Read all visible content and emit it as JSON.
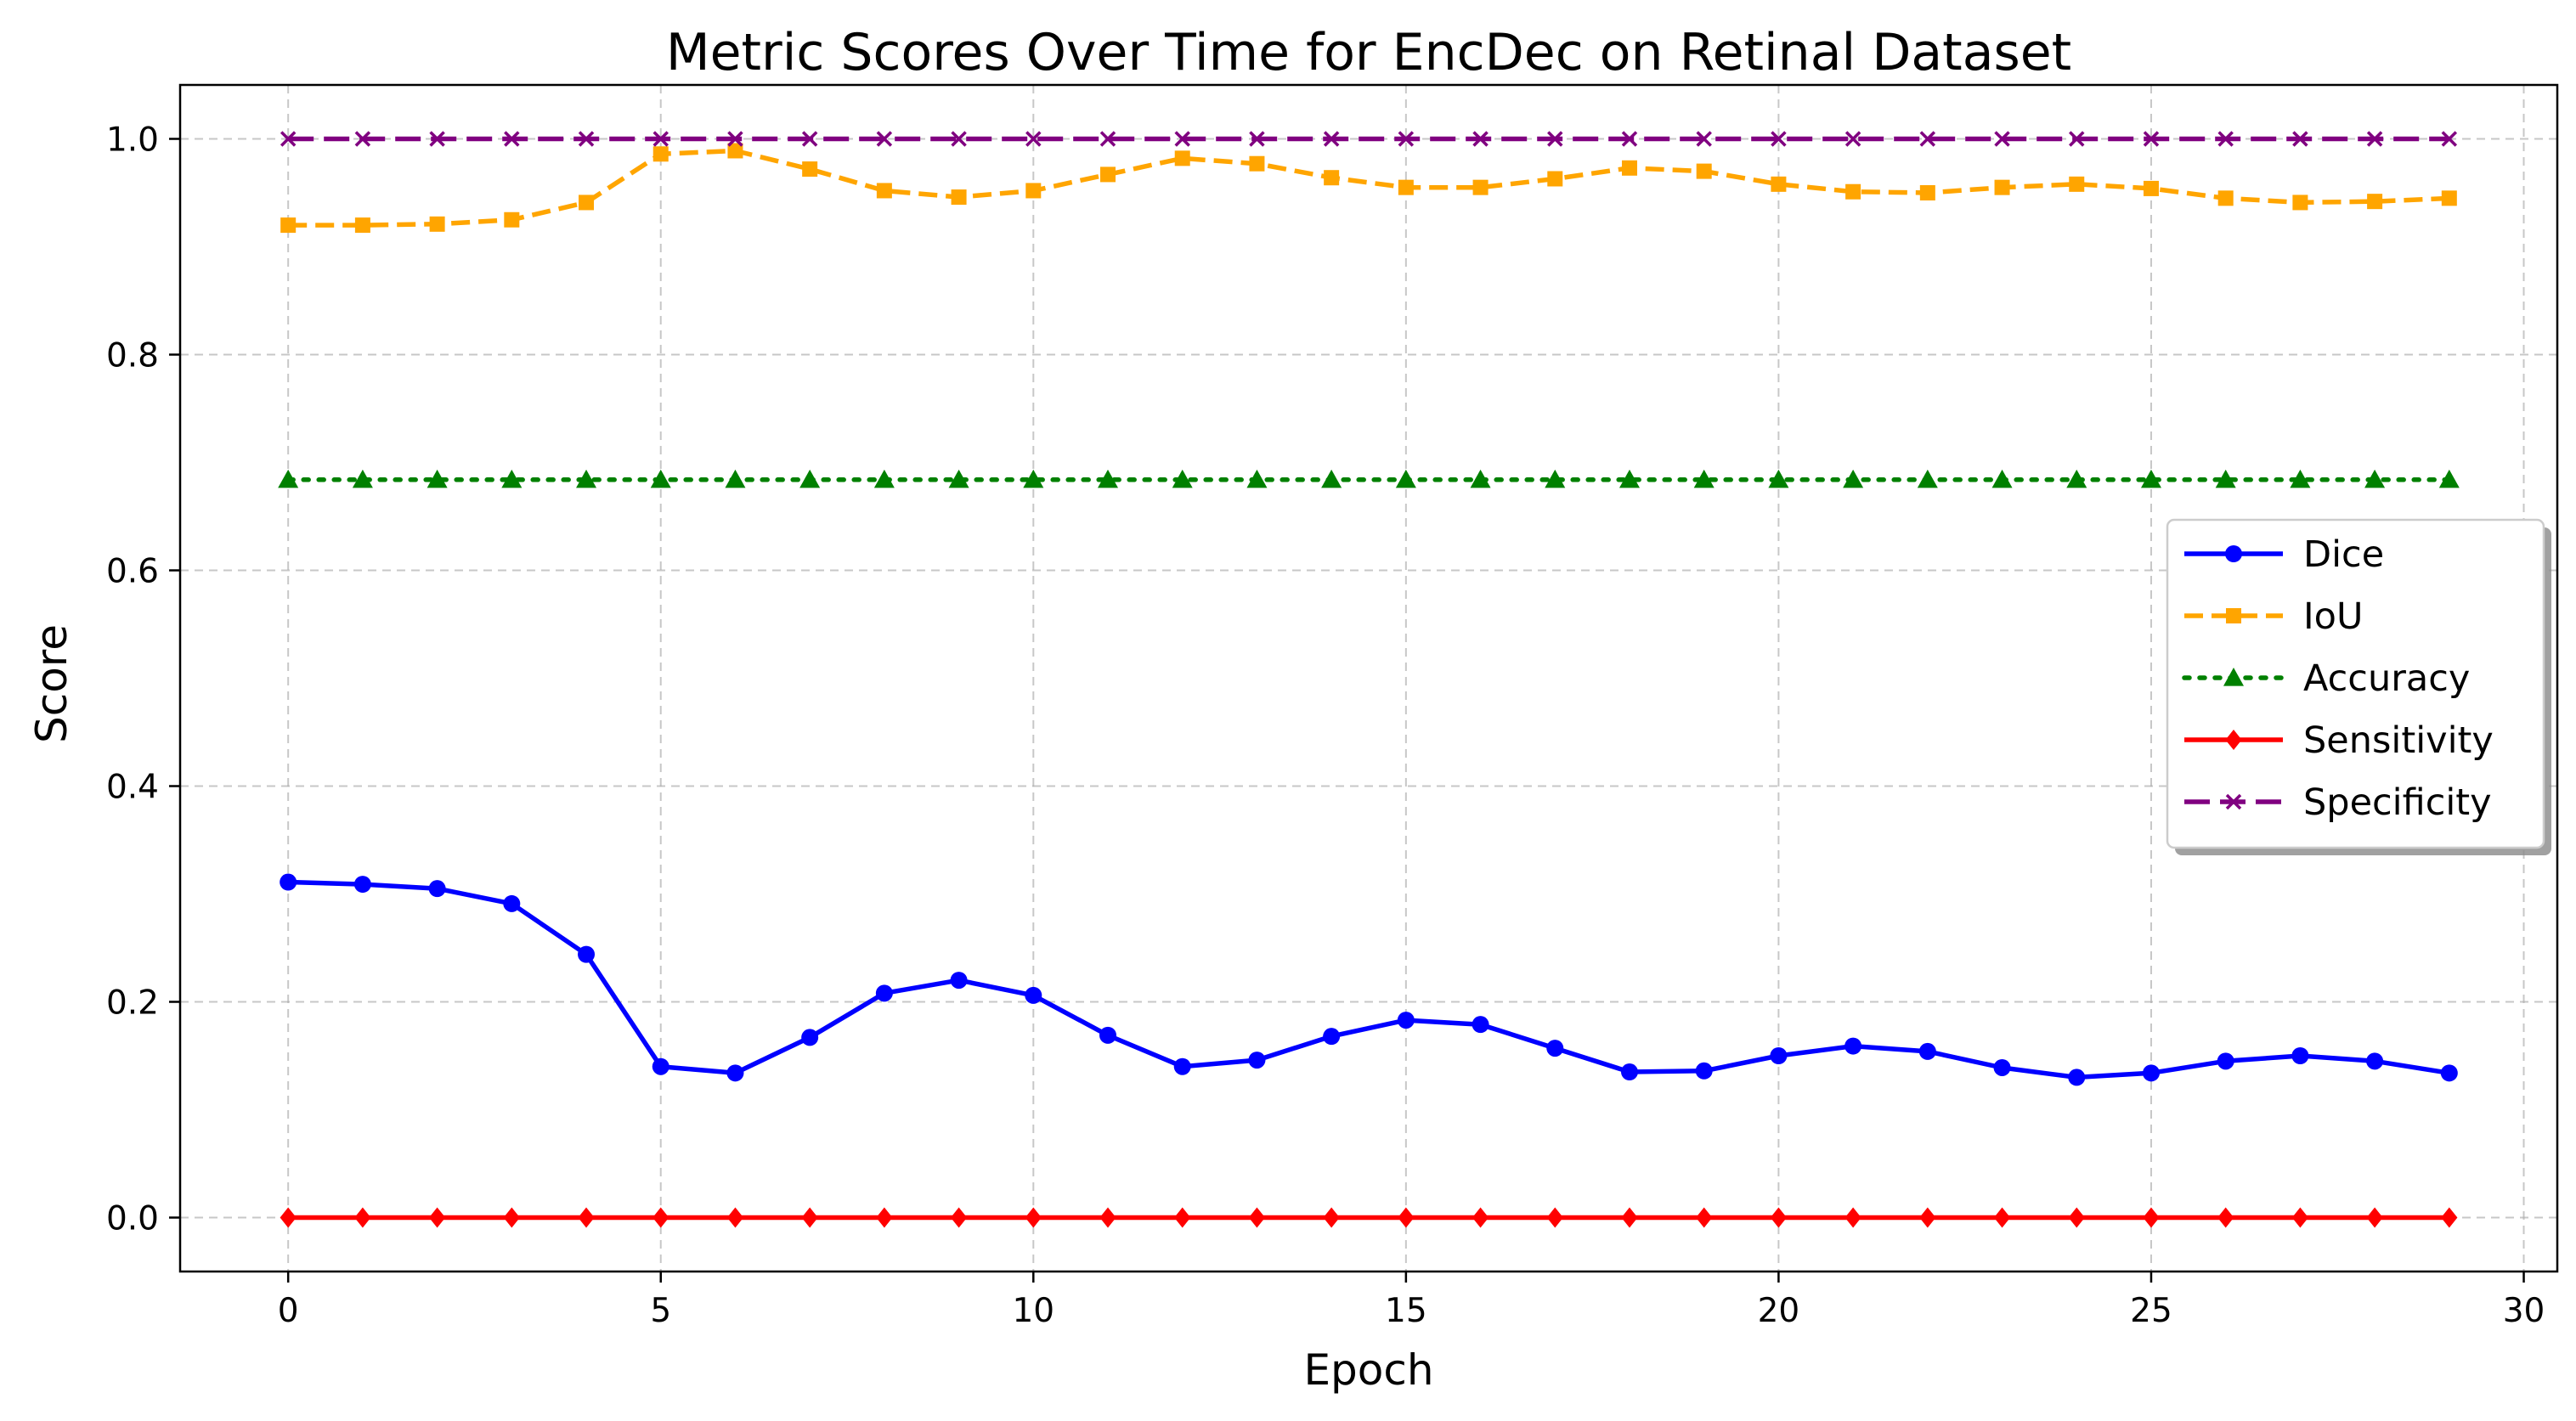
{
  "chart_data": {
    "type": "line",
    "title": "Metric Scores Over Time for EncDec on Retinal Dataset",
    "xlabel": "Epoch",
    "ylabel": "Score",
    "xlim": [
      -1.45,
      30.45
    ],
    "ylim": [
      -0.05,
      1.05
    ],
    "xticks": [
      0,
      5,
      10,
      15,
      20,
      25,
      30
    ],
    "xtick_labels": [
      "0",
      "5",
      "10",
      "15",
      "20",
      "25",
      "30"
    ],
    "yticks": [
      0.0,
      0.2,
      0.4,
      0.6,
      0.8,
      1.0
    ],
    "ytick_labels": [
      "0.0",
      "0.2",
      "0.4",
      "0.6",
      "0.8",
      "1.0"
    ],
    "grid": true,
    "legend_position": "center-right",
    "x": [
      0,
      1,
      2,
      3,
      4,
      5,
      6,
      7,
      8,
      9,
      10,
      11,
      12,
      13,
      14,
      15,
      16,
      17,
      18,
      19,
      20,
      21,
      22,
      23,
      24,
      25,
      26,
      27,
      28,
      29
    ],
    "series": [
      {
        "name": "Dice",
        "color": "#0000ff",
        "dash": "solid",
        "marker": "circle",
        "values": [
          0.311,
          0.309,
          0.305,
          0.291,
          0.244,
          0.14,
          0.134,
          0.167,
          0.208,
          0.22,
          0.206,
          0.169,
          0.14,
          0.146,
          0.168,
          0.183,
          0.179,
          0.157,
          0.135,
          0.136,
          0.15,
          0.159,
          0.154,
          0.139,
          0.13,
          0.134,
          0.145,
          0.15,
          0.145,
          0.134
        ]
      },
      {
        "name": "IoU",
        "color": "#ffa500",
        "dash": "dashed",
        "marker": "square",
        "values": [
          0.92,
          0.92,
          0.921,
          0.925,
          0.941,
          0.986,
          0.989,
          0.972,
          0.952,
          0.946,
          0.952,
          0.967,
          0.982,
          0.977,
          0.964,
          0.955,
          0.955,
          0.963,
          0.973,
          0.97,
          0.958,
          0.951,
          0.95,
          0.955,
          0.958,
          0.954,
          0.945,
          0.941,
          0.942,
          0.945
        ]
      },
      {
        "name": "Accuracy",
        "color": "#008000",
        "dash": "dotted",
        "marker": "triangle",
        "values": [
          0.684,
          0.684,
          0.684,
          0.684,
          0.684,
          0.684,
          0.684,
          0.684,
          0.684,
          0.684,
          0.684,
          0.684,
          0.684,
          0.684,
          0.684,
          0.684,
          0.684,
          0.684,
          0.684,
          0.684,
          0.684,
          0.684,
          0.684,
          0.684,
          0.684,
          0.684,
          0.684,
          0.684,
          0.684,
          0.684
        ]
      },
      {
        "name": "Sensitivity",
        "color": "#ff0000",
        "dash": "solid",
        "marker": "diamond",
        "values": [
          0.0,
          0.0,
          0.0,
          0.0,
          0.0,
          0.0,
          0.0,
          0.0,
          0.0,
          0.0,
          0.0,
          0.0,
          0.0,
          0.0,
          0.0,
          0.0,
          0.0,
          0.0,
          0.0,
          0.0,
          0.0,
          0.0,
          0.0,
          0.0,
          0.0,
          0.0,
          0.0,
          0.0,
          0.0,
          0.0
        ]
      },
      {
        "name": "Specificity",
        "color": "#800080",
        "dash": "dashdash",
        "marker": "x",
        "values": [
          1.0,
          1.0,
          1.0,
          1.0,
          1.0,
          1.0,
          1.0,
          1.0,
          1.0,
          1.0,
          1.0,
          1.0,
          1.0,
          1.0,
          1.0,
          1.0,
          1.0,
          1.0,
          1.0,
          1.0,
          1.0,
          1.0,
          1.0,
          1.0,
          1.0,
          1.0,
          1.0,
          1.0,
          1.0,
          1.0
        ]
      }
    ]
  }
}
